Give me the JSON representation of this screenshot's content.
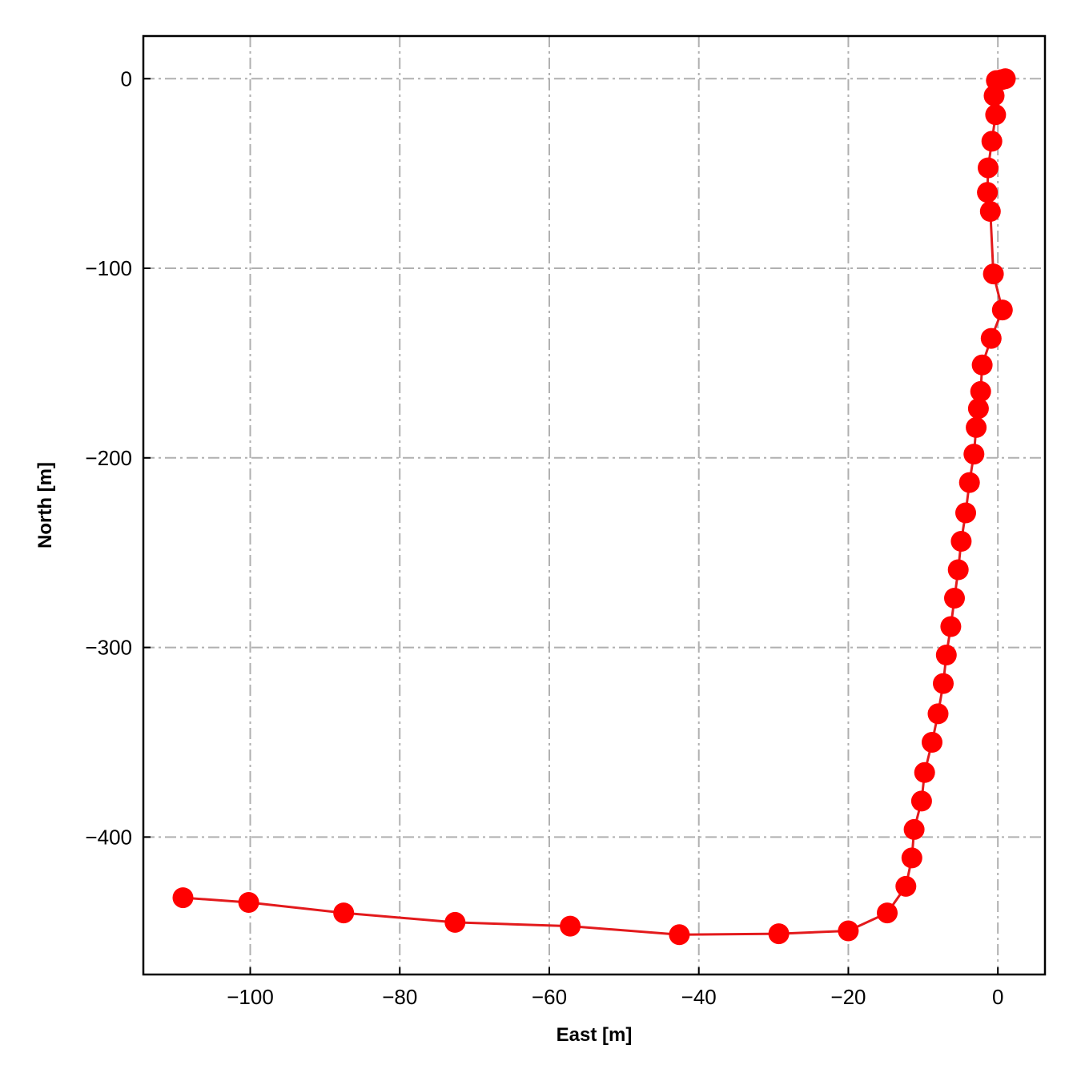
{
  "chart_data": {
    "type": "line",
    "title": "",
    "xlabel": "East [m]",
    "ylabel": "North [m]",
    "xlim": [
      -114.3,
      6.3
    ],
    "ylim": [
      -472.5,
      22.5
    ],
    "xticks": [
      -100,
      -80,
      -60,
      -40,
      -20,
      0
    ],
    "yticks": [
      0,
      -100,
      -200,
      -300,
      -400
    ],
    "xtick_labels": [
      "−100",
      "−80",
      "−60",
      "−40",
      "−20",
      "0"
    ],
    "ytick_labels": [
      "0",
      "−100",
      "−200",
      "−300",
      "−400"
    ],
    "grid": true,
    "legend": null,
    "line_color": "#e31a1c",
    "marker_color": "#ff0000",
    "series": [
      {
        "x": [
          1.0,
          0.5,
          -0.2,
          -0.5,
          -0.3,
          -0.8,
          -1.3,
          -1.4,
          -1.0,
          -0.6,
          0.6,
          -0.9,
          -2.1,
          -2.3,
          -2.6,
          -2.9,
          -3.2,
          -3.8,
          -4.3,
          -4.9,
          -5.3,
          -5.8,
          -6.3,
          -6.9,
          -7.3,
          -8.0,
          -8.8,
          -9.8,
          -10.2,
          -11.2,
          -11.5,
          -12.3,
          -14.8,
          -20.0,
          -29.3,
          -42.6,
          -57.2,
          -72.6,
          -87.5,
          -100.2,
          -109.0
        ],
        "y": [
          0,
          -0.5,
          -1.0,
          -9.0,
          -19.0,
          -33.0,
          -47.0,
          -60.0,
          -70.0,
          -103.0,
          -122.0,
          -137.0,
          -151.0,
          -165.0,
          -174.0,
          -184.0,
          -198.0,
          -213.0,
          -229.0,
          -244.0,
          -259.0,
          -274.0,
          -289.0,
          -304.0,
          -319.0,
          -335.0,
          -350.0,
          -366.0,
          -381.0,
          -396.0,
          -411.0,
          -426.0,
          -440.0,
          -449.5,
          -451.0,
          -451.5,
          -447.0,
          -445.0,
          -440.0,
          -434.5,
          -432.0
        ]
      }
    ]
  }
}
